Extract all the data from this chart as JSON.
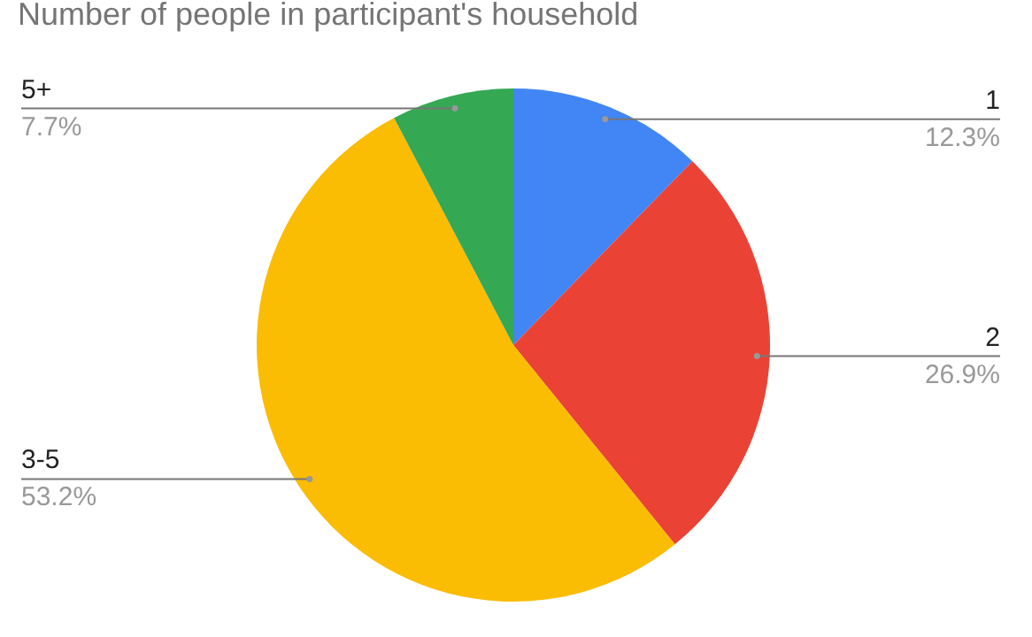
{
  "chart_data": {
    "type": "pie",
    "title": "Number of people in participant's household",
    "categories": [
      "1",
      "2",
      "3-5",
      "5+"
    ],
    "values": [
      12.3,
      26.9,
      53.2,
      7.7
    ],
    "colors": [
      "#4285f4",
      "#ea4335",
      "#fbbc04",
      "#34a853"
    ],
    "value_labels": [
      "12.3%",
      "26.9%",
      "53.2%",
      "7.7%"
    ]
  }
}
